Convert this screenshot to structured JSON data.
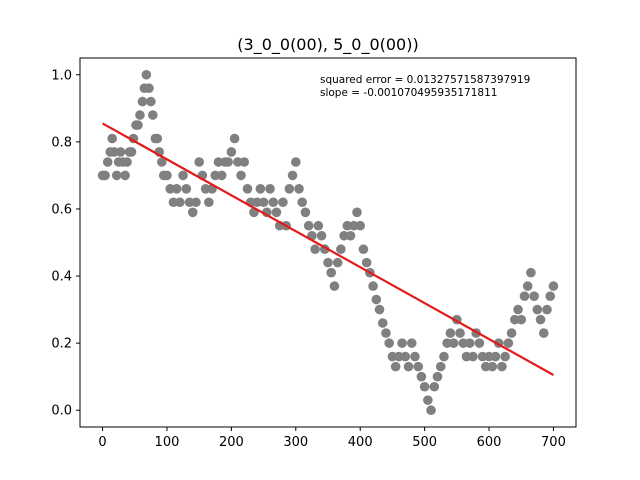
{
  "chart_data": {
    "type": "scatter",
    "title": "(3_0_0(00), 5_0_0(00))",
    "xlabel": "",
    "ylabel": "",
    "xlim": [
      -35,
      735
    ],
    "ylim": [
      -0.05,
      1.05
    ],
    "xticks": [
      0,
      100,
      200,
      300,
      400,
      500,
      600,
      700
    ],
    "yticks": [
      0.0,
      0.2,
      0.4,
      0.6,
      0.8,
      1.0
    ],
    "xtick_labels": [
      "0",
      "100",
      "200",
      "300",
      "400",
      "500",
      "600",
      "700"
    ],
    "ytick_labels": [
      "0.0",
      "0.2",
      "0.4",
      "0.6",
      "0.8",
      "1.0"
    ],
    "grid": false,
    "annotations": [
      "squared error = 0.01327571587397919",
      "slope = -0.001070495935171811"
    ],
    "series": [
      {
        "type": "scatter",
        "color": "#808080",
        "points": [
          [
            0,
            0.7
          ],
          [
            4,
            0.7
          ],
          [
            8,
            0.74
          ],
          [
            12,
            0.77
          ],
          [
            15,
            0.81
          ],
          [
            18,
            0.77
          ],
          [
            22,
            0.7
          ],
          [
            25,
            0.74
          ],
          [
            28,
            0.77
          ],
          [
            32,
            0.74
          ],
          [
            35,
            0.7
          ],
          [
            38,
            0.74
          ],
          [
            42,
            0.77
          ],
          [
            45,
            0.77
          ],
          [
            48,
            0.81
          ],
          [
            52,
            0.85
          ],
          [
            55,
            0.85
          ],
          [
            58,
            0.88
          ],
          [
            62,
            0.92
          ],
          [
            65,
            0.96
          ],
          [
            68,
            1.0
          ],
          [
            72,
            0.96
          ],
          [
            75,
            0.92
          ],
          [
            78,
            0.88
          ],
          [
            82,
            0.81
          ],
          [
            85,
            0.81
          ],
          [
            88,
            0.77
          ],
          [
            92,
            0.74
          ],
          [
            95,
            0.7
          ],
          [
            100,
            0.7
          ],
          [
            105,
            0.66
          ],
          [
            110,
            0.62
          ],
          [
            115,
            0.66
          ],
          [
            120,
            0.62
          ],
          [
            125,
            0.7
          ],
          [
            130,
            0.66
          ],
          [
            135,
            0.62
          ],
          [
            140,
            0.59
          ],
          [
            145,
            0.62
          ],
          [
            150,
            0.74
          ],
          [
            155,
            0.7
          ],
          [
            160,
            0.66
          ],
          [
            165,
            0.62
          ],
          [
            170,
            0.66
          ],
          [
            175,
            0.7
          ],
          [
            180,
            0.74
          ],
          [
            185,
            0.7
          ],
          [
            190,
            0.74
          ],
          [
            195,
            0.74
          ],
          [
            200,
            0.77
          ],
          [
            205,
            0.81
          ],
          [
            210,
            0.74
          ],
          [
            215,
            0.7
          ],
          [
            220,
            0.74
          ],
          [
            225,
            0.66
          ],
          [
            230,
            0.62
          ],
          [
            235,
            0.59
          ],
          [
            240,
            0.62
          ],
          [
            245,
            0.66
          ],
          [
            250,
            0.62
          ],
          [
            255,
            0.59
          ],
          [
            260,
            0.66
          ],
          [
            265,
            0.62
          ],
          [
            270,
            0.59
          ],
          [
            275,
            0.55
          ],
          [
            280,
            0.62
          ],
          [
            285,
            0.55
          ],
          [
            290,
            0.66
          ],
          [
            295,
            0.7
          ],
          [
            300,
            0.74
          ],
          [
            305,
            0.66
          ],
          [
            310,
            0.62
          ],
          [
            315,
            0.59
          ],
          [
            320,
            0.55
          ],
          [
            325,
            0.52
          ],
          [
            330,
            0.48
          ],
          [
            335,
            0.55
          ],
          [
            340,
            0.52
          ],
          [
            345,
            0.48
          ],
          [
            350,
            0.44
          ],
          [
            355,
            0.41
          ],
          [
            360,
            0.37
          ],
          [
            365,
            0.44
          ],
          [
            370,
            0.48
          ],
          [
            375,
            0.52
          ],
          [
            380,
            0.55
          ],
          [
            385,
            0.52
          ],
          [
            390,
            0.55
          ],
          [
            395,
            0.59
          ],
          [
            400,
            0.55
          ],
          [
            405,
            0.48
          ],
          [
            410,
            0.44
          ],
          [
            415,
            0.41
          ],
          [
            420,
            0.37
          ],
          [
            425,
            0.33
          ],
          [
            430,
            0.3
          ],
          [
            435,
            0.26
          ],
          [
            440,
            0.23
          ],
          [
            445,
            0.2
          ],
          [
            450,
            0.16
          ],
          [
            455,
            0.13
          ],
          [
            460,
            0.16
          ],
          [
            465,
            0.2
          ],
          [
            470,
            0.16
          ],
          [
            475,
            0.13
          ],
          [
            480,
            0.2
          ],
          [
            485,
            0.16
          ],
          [
            490,
            0.13
          ],
          [
            495,
            0.1
          ],
          [
            500,
            0.07
          ],
          [
            505,
            0.03
          ],
          [
            510,
            0.0
          ],
          [
            515,
            0.07
          ],
          [
            520,
            0.1
          ],
          [
            525,
            0.13
          ],
          [
            530,
            0.16
          ],
          [
            535,
            0.2
          ],
          [
            540,
            0.23
          ],
          [
            545,
            0.2
          ],
          [
            550,
            0.27
          ],
          [
            555,
            0.23
          ],
          [
            560,
            0.2
          ],
          [
            565,
            0.16
          ],
          [
            570,
            0.2
          ],
          [
            575,
            0.16
          ],
          [
            580,
            0.23
          ],
          [
            585,
            0.2
          ],
          [
            590,
            0.16
          ],
          [
            595,
            0.13
          ],
          [
            600,
            0.16
          ],
          [
            605,
            0.13
          ],
          [
            610,
            0.16
          ],
          [
            615,
            0.2
          ],
          [
            620,
            0.13
          ],
          [
            625,
            0.16
          ],
          [
            630,
            0.2
          ],
          [
            635,
            0.23
          ],
          [
            640,
            0.27
          ],
          [
            645,
            0.3
          ],
          [
            650,
            0.27
          ],
          [
            655,
            0.34
          ],
          [
            660,
            0.37
          ],
          [
            665,
            0.41
          ],
          [
            670,
            0.34
          ],
          [
            675,
            0.3
          ],
          [
            680,
            0.27
          ],
          [
            685,
            0.23
          ],
          [
            690,
            0.3
          ],
          [
            695,
            0.34
          ],
          [
            700,
            0.37
          ]
        ]
      },
      {
        "type": "line",
        "color": "#e31a1c",
        "points": [
          [
            0,
            0.855
          ],
          [
            700,
            0.105
          ]
        ]
      }
    ]
  }
}
